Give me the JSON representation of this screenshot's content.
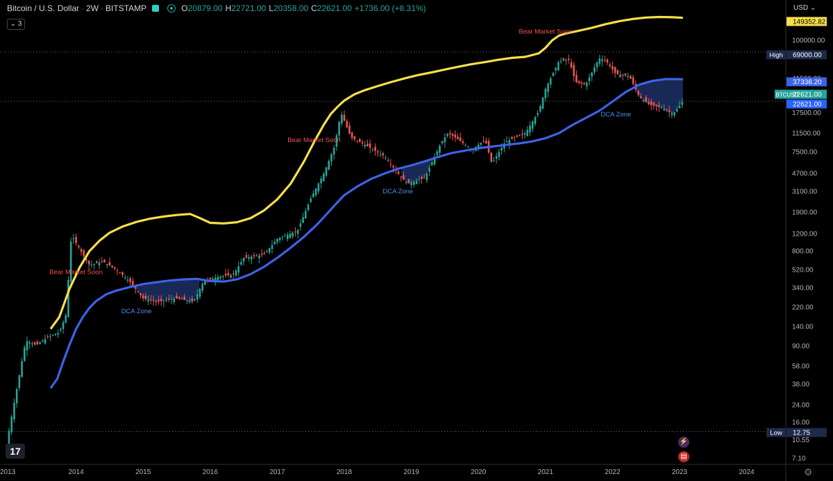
{
  "header": {
    "symbol": "Bitcoin / U.S. Dollar",
    "interval": "2W",
    "exchange": "BITSTAMP",
    "open_label": "O",
    "open": "20879.00",
    "high_label": "H",
    "high": "22721.00",
    "low_label": "L",
    "low": "20358.00",
    "close_label": "C",
    "close": "22621.00",
    "change": "+1736.00 (+8.31%)",
    "collapse_count": "3"
  },
  "currency": "USD",
  "colors": {
    "background": "#000000",
    "upper_band": "#f7e04a",
    "lower_band": "#3d63e8",
    "up_candle": "#26a69a",
    "down_candle": "#ef5350",
    "dca_fill": "#1c2d5e",
    "bear_text": "#f0544f",
    "dca_text": "#4f8cf0"
  },
  "chart_data": {
    "type": "candlestick",
    "title": "",
    "y_scale": "log",
    "x_ticks": [
      "2014",
      "2015",
      "2016",
      "2017",
      "2018",
      "2019",
      "2020",
      "2021",
      "2022",
      "2023",
      "2024"
    ],
    "x_edge_label": "2013",
    "y_ticks": [
      "100000.00",
      "41500.00",
      "17500.00",
      "11500.00",
      "7500.00",
      "4700.00",
      "3100.00",
      "1900.00",
      "1200.00",
      "800.00",
      "520.00",
      "340.00",
      "220.00",
      "140.00",
      "90.00",
      "58.00",
      "38.00",
      "24.00",
      "16.00",
      "10.55",
      "7.10"
    ],
    "price_tags": [
      {
        "label": "",
        "value": "149352.82",
        "price": 149352.82,
        "style": "upper"
      },
      {
        "label": "High",
        "value": "69000.00",
        "price": 69000,
        "style": "high"
      },
      {
        "label": "",
        "value": "37338.20",
        "price": 37338.2,
        "style": "lower"
      },
      {
        "label": "BTCUSD",
        "value": "22621.00",
        "price": 22621,
        "style": "last"
      },
      {
        "label": "",
        "value": "22621.00",
        "price": 22621,
        "style": "lastblue"
      },
      {
        "label": "Low",
        "value": "12.75",
        "price": 12.75,
        "style": "low"
      }
    ],
    "annotations": [
      {
        "text": "Bear Market Soon",
        "kind": "bear",
        "x": 2014.0,
        "y": 450
      },
      {
        "text": "Bear Market Soon",
        "kind": "bear",
        "x": 2017.55,
        "y": 9000
      },
      {
        "text": "Bear Market Soon",
        "kind": "bear",
        "x": 2021.0,
        "y": 105000
      },
      {
        "text": "DCA Zone",
        "kind": "dca",
        "x": 2014.9,
        "y": 185
      },
      {
        "text": "DCA Zone",
        "kind": "dca",
        "x": 2018.8,
        "y": 2800
      },
      {
        "text": "DCA Zone",
        "kind": "dca",
        "x": 2022.05,
        "y": 16000
      }
    ],
    "series": [
      {
        "name": "",
        "kind": "upper_band",
        "x": [
          2013.62,
          2013.75,
          2013.9,
          2014.05,
          2014.2,
          2014.35,
          2014.5,
          2014.7,
          2014.9,
          2015.1,
          2015.3,
          2015.5,
          2015.7,
          2015.85,
          2016.0,
          2016.2,
          2016.4,
          2016.6,
          2016.8,
          2017.0,
          2017.2,
          2017.4,
          2017.55,
          2017.7,
          2017.8,
          2017.9,
          2018.0,
          2018.15,
          2018.3,
          2018.5,
          2018.7,
          2018.9,
          2019.1,
          2019.3,
          2019.5,
          2019.7,
          2019.9,
          2020.1,
          2020.3,
          2020.5,
          2020.7,
          2020.9,
          2021.0,
          2021.1,
          2021.2,
          2021.3,
          2021.5,
          2021.7,
          2021.9,
          2022.1,
          2022.3,
          2022.5,
          2022.7,
          2022.9,
          2023.05
        ],
        "values": [
          130,
          170,
          320,
          520,
          760,
          960,
          1150,
          1330,
          1470,
          1580,
          1660,
          1720,
          1760,
          1600,
          1440,
          1420,
          1460,
          1600,
          1900,
          2450,
          3500,
          5800,
          9000,
          13500,
          17000,
          20000,
          23000,
          26500,
          29000,
          32000,
          35000,
          38000,
          41000,
          43500,
          46500,
          49500,
          52500,
          55000,
          58000,
          60500,
          62000,
          67000,
          76000,
          90000,
          100000,
          105000,
          112000,
          120000,
          130000,
          139000,
          146000,
          151000,
          153000,
          152000,
          150000
        ]
      },
      {
        "name": "",
        "kind": "lower_band",
        "x": [
          2013.62,
          2013.72,
          2013.8,
          2013.9,
          2014.0,
          2014.1,
          2014.2,
          2014.3,
          2014.45,
          2014.6,
          2014.8,
          2015.0,
          2015.2,
          2015.4,
          2015.6,
          2015.8,
          2016.0,
          2016.2,
          2016.4,
          2016.6,
          2016.8,
          2017.0,
          2017.2,
          2017.4,
          2017.6,
          2017.8,
          2017.9,
          2018.0,
          2018.2,
          2018.4,
          2018.6,
          2018.8,
          2019.0,
          2019.2,
          2019.4,
          2019.6,
          2019.8,
          2020.0,
          2020.2,
          2020.4,
          2020.6,
          2020.8,
          2021.0,
          2021.2,
          2021.4,
          2021.6,
          2021.8,
          2022.0,
          2022.2,
          2022.4,
          2022.6,
          2022.8,
          2023.05
        ],
        "values": [
          34,
          42,
          60,
          90,
          130,
          170,
          210,
          245,
          285,
          310,
          335,
          360,
          375,
          390,
          400,
          405,
          385,
          380,
          400,
          450,
          530,
          650,
          820,
          1050,
          1400,
          1950,
          2300,
          2700,
          3300,
          3900,
          4400,
          4900,
          5300,
          5800,
          6400,
          7000,
          7400,
          7800,
          8100,
          8400,
          8700,
          9100,
          9800,
          11000,
          13200,
          15500,
          18200,
          22500,
          28000,
          33000,
          36000,
          37500,
          37338
        ]
      }
    ]
  }
}
